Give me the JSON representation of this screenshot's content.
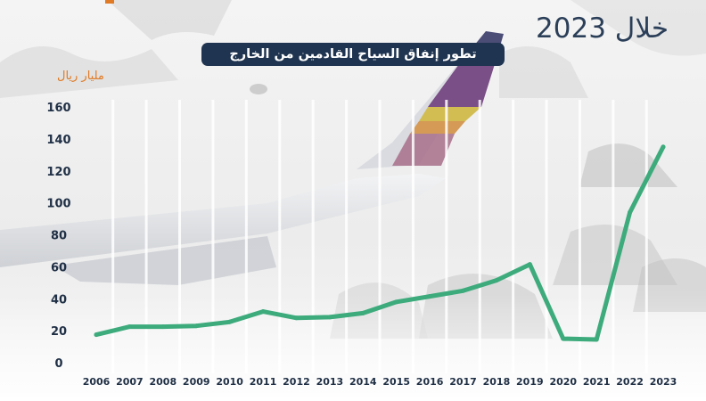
{
  "header": {
    "headline": "خلال 2023",
    "title": "تطور إنفاق السياح القادمين من الخارج"
  },
  "chart_data": {
    "type": "line",
    "title": "تطور إنفاق السياح القادمين من الخارج",
    "ylabel": "مليار ريال",
    "xlabel": "",
    "categories": [
      "2006",
      "2007",
      "2008",
      "2009",
      "2010",
      "2011",
      "2012",
      "2013",
      "2014",
      "2015",
      "2016",
      "2017",
      "2018",
      "2019",
      "2020",
      "2021",
      "2022",
      "2023"
    ],
    "series": [
      {
        "values": [
          17.5,
          22.5,
          22.5,
          23,
          25.5,
          32,
          28,
          28.5,
          31,
          38,
          41.5,
          45,
          51.5,
          61.5,
          15,
          14.5,
          94,
          135
        ]
      }
    ],
    "ylim": [
      0,
      160
    ],
    "yticks": [
      0,
      20,
      40,
      60,
      80,
      100,
      120,
      140,
      160
    ],
    "grid": "vertical",
    "line_color": "#3dab7c",
    "title_color": "#1f3450",
    "unit_color": "#e07a24",
    "axis_text_color": "#1f2f45"
  }
}
